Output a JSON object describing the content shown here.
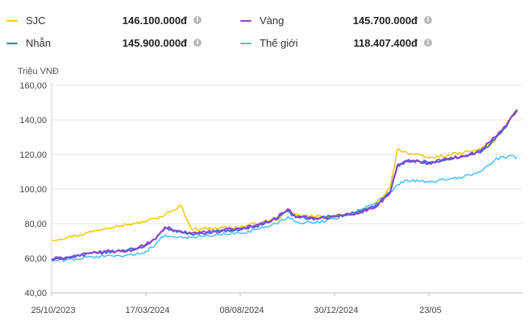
{
  "legend": {
    "items": [
      {
        "name": "SJC",
        "value": "146.100.000đ",
        "color": "#f2c811"
      },
      {
        "name": "Vàng",
        "value": "145.700.000đ",
        "color": "#8e44c9"
      },
      {
        "name": "Nhẫn",
        "value": "145.900.000đ",
        "color": "#3a6fe0"
      },
      {
        "name": "Thế giới",
        "value": "118.407.400đ",
        "color": "#4fc3f7"
      }
    ],
    "info_icon": "info-icon"
  },
  "chart_data": {
    "type": "line",
    "ylabel": "Triệu VNĐ",
    "ylim": [
      40,
      160
    ],
    "yticks": [
      "40,00",
      "60,00",
      "80,00",
      "100,00",
      "120,00",
      "140,00",
      "160,00"
    ],
    "xticks": [
      "25/10/2023",
      "17/03/2024",
      "08/08/2024",
      "30/12/2024",
      "23/05"
    ],
    "grid": "horizontal",
    "x": [
      "2023-10-25",
      "2023-12-01",
      "2024-01-01",
      "2024-02-01",
      "2024-03-01",
      "2024-03-17",
      "2024-04-01",
      "2024-04-15",
      "2024-05-01",
      "2024-05-10",
      "2024-05-25",
      "2024-06-10",
      "2024-07-01",
      "2024-08-08",
      "2024-09-01",
      "2024-10-01",
      "2024-10-20",
      "2024-11-01",
      "2024-12-01",
      "2024-12-30",
      "2025-02-01",
      "2025-03-01",
      "2025-03-25",
      "2025-04-05",
      "2025-04-20",
      "2025-05-23",
      "2025-06-20",
      "2025-07-15",
      "2025-08-10",
      "2025-09-01",
      "2025-09-15",
      "2025-10-05"
    ],
    "series": [
      {
        "name": "SJC",
        "color": "#f2c811",
        "values": [
          70.5,
          73,
          76,
          79,
          80,
          81.5,
          83,
          85,
          88,
          90.5,
          77,
          77,
          77.5,
          78,
          80,
          82,
          87,
          85,
          84,
          84.5,
          86,
          90,
          101,
          123,
          121,
          118,
          119.5,
          121,
          123,
          128,
          136,
          146.1
        ]
      },
      {
        "name": "Vàng",
        "color": "#8e44c9",
        "values": [
          59.5,
          61,
          63.5,
          64,
          65,
          68,
          71,
          78,
          76,
          75,
          74.5,
          75,
          75.5,
          77,
          79,
          83,
          88.5,
          84,
          83,
          84,
          86,
          89,
          98,
          114,
          116,
          115,
          117.5,
          119,
          122,
          130,
          136,
          145.7
        ]
      },
      {
        "name": "Nhẫn",
        "color": "#3a6fe0",
        "values": [
          59,
          61.5,
          63,
          64,
          65.5,
          67.5,
          71,
          77.5,
          76,
          75.5,
          74,
          74.5,
          75.5,
          76.5,
          78.5,
          82.5,
          87.5,
          83.5,
          83,
          84.5,
          86.5,
          89.5,
          98.5,
          113,
          116.5,
          115.5,
          117,
          119,
          121,
          129,
          135,
          145.9
        ]
      },
      {
        "name": "Thế giới",
        "color": "#4fc3f7",
        "values": [
          58.5,
          59.5,
          61,
          61.5,
          62,
          64,
          68,
          73.5,
          72,
          72.5,
          72,
          72.5,
          73.5,
          74.5,
          76.5,
          80,
          84,
          81,
          80.5,
          83,
          87,
          91.5,
          98,
          102.5,
          105,
          104,
          105.5,
          107,
          110,
          117,
          118.5,
          118.4
        ]
      }
    ]
  }
}
